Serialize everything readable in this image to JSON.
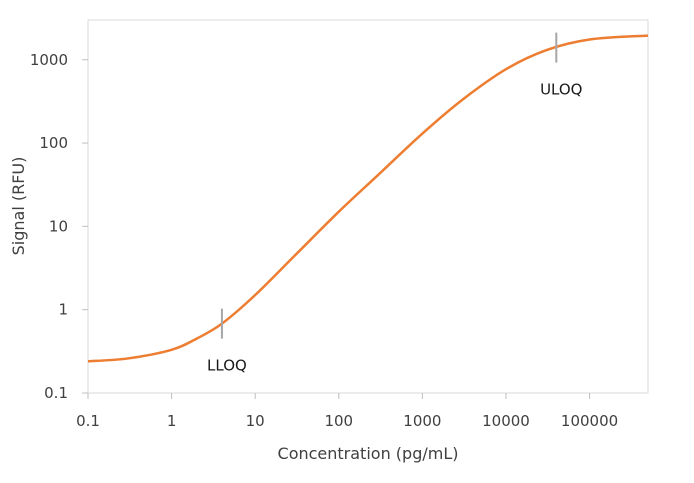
{
  "chart_data": {
    "type": "line",
    "title": "",
    "xlabel": "Concentration (pg/mL)",
    "ylabel": "Signal (RFU)",
    "x_scale": "log",
    "y_scale": "log",
    "xlim": [
      0.1,
      500000
    ],
    "ylim": [
      0.1,
      3000
    ],
    "grid": false,
    "legend": "none",
    "x_ticks": [
      {
        "value": 0.1,
        "label": "0.1"
      },
      {
        "value": 1,
        "label": "1"
      },
      {
        "value": 10,
        "label": "10"
      },
      {
        "value": 100,
        "label": "100"
      },
      {
        "value": 1000,
        "label": "1000"
      },
      {
        "value": 10000,
        "label": "10000"
      },
      {
        "value": 100000,
        "label": "100000"
      }
    ],
    "y_ticks": [
      {
        "value": 0.1,
        "label": "0.1"
      },
      {
        "value": 1,
        "label": "1"
      },
      {
        "value": 10,
        "label": "10"
      },
      {
        "value": 100,
        "label": "100"
      },
      {
        "value": 1000,
        "label": "1000"
      }
    ],
    "series": [
      {
        "color": "#ED7D31",
        "x": [
          0.1,
          0.3,
          1,
          2,
          4,
          10,
          30,
          100,
          300,
          1000,
          3000,
          10000,
          30000,
          100000,
          500000
        ],
        "y": [
          0.24,
          0.26,
          0.33,
          0.45,
          0.68,
          1.5,
          4.5,
          15,
          42,
          130,
          330,
          770,
          1300,
          1750,
          1950
        ]
      }
    ],
    "annotations": [
      {
        "label": "LLOQ",
        "x": 4,
        "y": 0.68
      },
      {
        "label": "ULOQ",
        "x": 40000,
        "y": 1400
      }
    ],
    "colors": {
      "curve": "#ED7D31",
      "axis": "#bfbfbf",
      "marker": "#a6a6a6"
    }
  }
}
